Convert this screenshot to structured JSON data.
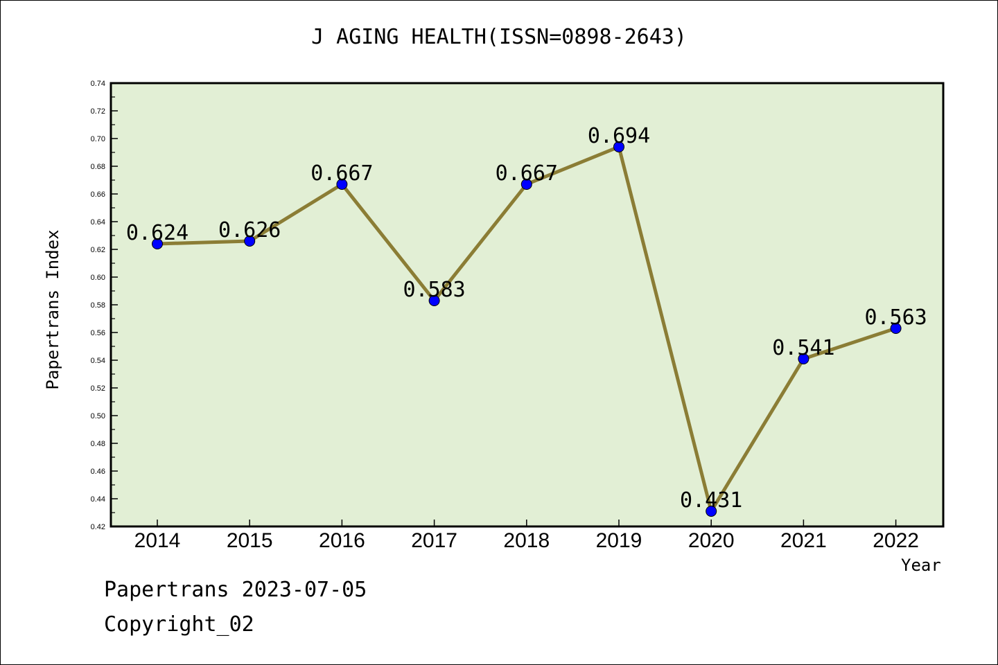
{
  "chart_data": {
    "type": "line",
    "title": "J AGING HEALTH(ISSN=0898-2643)",
    "xlabel": "Year",
    "ylabel": "Papertrans Index",
    "categories": [
      "2014",
      "2015",
      "2016",
      "2017",
      "2018",
      "2019",
      "2020",
      "2021",
      "2022"
    ],
    "series": [
      {
        "values": [
          0.624,
          0.626,
          0.667,
          0.583,
          0.667,
          0.694,
          0.431,
          0.541,
          0.563
        ],
        "data_labels": [
          "0.624",
          "0.626",
          "0.667",
          "0.583",
          "0.667",
          "0.694",
          "0.431",
          "0.541",
          "0.563"
        ]
      }
    ],
    "ylim": [
      0.42,
      0.74
    ],
    "y_ticks": [
      "0.42",
      "0.44",
      "0.46",
      "0.48",
      "0.50",
      "0.52",
      "0.54",
      "0.56",
      "0.58",
      "0.60",
      "0.62",
      "0.64",
      "0.66",
      "0.68",
      "0.70",
      "0.72",
      "0.74"
    ],
    "grid": false,
    "colors": {
      "plot_background": "#e2efd5",
      "line": "#8b7d35",
      "marker": "#0000ff"
    }
  },
  "footer": {
    "line1": "Papertrans 2023-07-05",
    "line2": "Copyright_02"
  }
}
